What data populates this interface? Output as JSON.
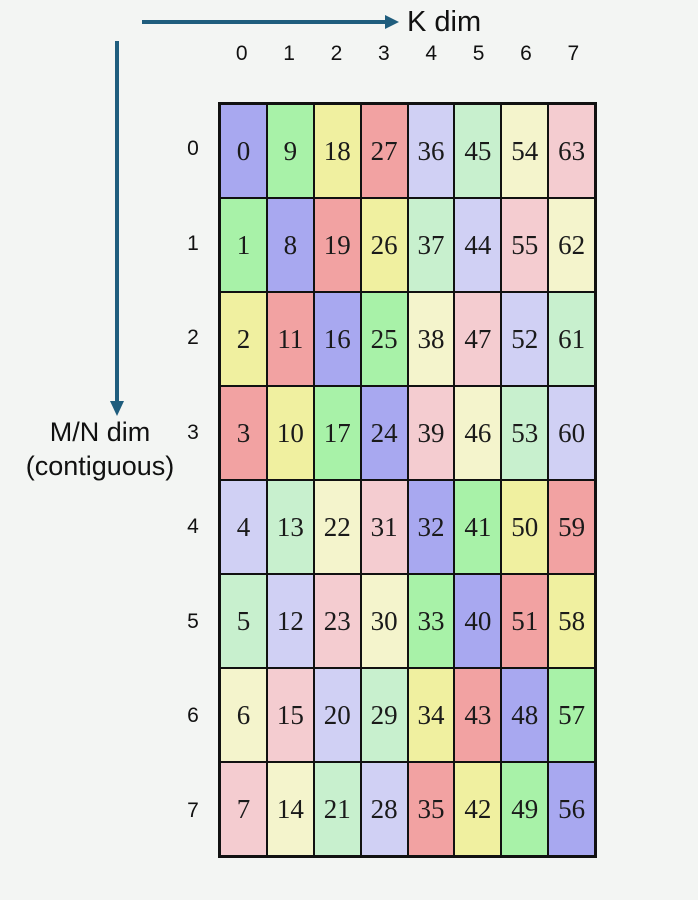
{
  "colors": {
    "background": "#f3f5f3",
    "arrow": "#1f5d7d",
    "text": "#111111"
  },
  "k_axis": {
    "label": "K dim"
  },
  "mn_axis": {
    "label_line1": "M/N dim",
    "label_line2": "(contiguous)"
  },
  "col_headers": [
    "0",
    "1",
    "2",
    "3",
    "4",
    "5",
    "6",
    "7"
  ],
  "row_headers": [
    "0",
    "1",
    "2",
    "3",
    "4",
    "5",
    "6",
    "7"
  ],
  "palette": {
    "purple": "#a8a8f0",
    "green": "#a8f2a8",
    "yellow": "#f0f0a0",
    "red": "#f2a2a2",
    "light_purple": "#d0d0f4",
    "light_green": "#c8f0ce",
    "light_yellow": "#f4f4cc",
    "light_pink": "#f4ccd0"
  },
  "grid": {
    "rows": [
      {
        "cells": [
          {
            "v": "0",
            "c": "purple"
          },
          {
            "v": "9",
            "c": "green"
          },
          {
            "v": "18",
            "c": "yellow"
          },
          {
            "v": "27",
            "c": "red"
          },
          {
            "v": "36",
            "c": "light_purple"
          },
          {
            "v": "45",
            "c": "light_green"
          },
          {
            "v": "54",
            "c": "light_yellow"
          },
          {
            "v": "63",
            "c": "light_pink"
          }
        ]
      },
      {
        "cells": [
          {
            "v": "1",
            "c": "green"
          },
          {
            "v": "8",
            "c": "purple"
          },
          {
            "v": "19",
            "c": "red"
          },
          {
            "v": "26",
            "c": "yellow"
          },
          {
            "v": "37",
            "c": "light_green"
          },
          {
            "v": "44",
            "c": "light_purple"
          },
          {
            "v": "55",
            "c": "light_pink"
          },
          {
            "v": "62",
            "c": "light_yellow"
          }
        ]
      },
      {
        "cells": [
          {
            "v": "2",
            "c": "yellow"
          },
          {
            "v": "11",
            "c": "red"
          },
          {
            "v": "16",
            "c": "purple"
          },
          {
            "v": "25",
            "c": "green"
          },
          {
            "v": "38",
            "c": "light_yellow"
          },
          {
            "v": "47",
            "c": "light_pink"
          },
          {
            "v": "52",
            "c": "light_purple"
          },
          {
            "v": "61",
            "c": "light_green"
          }
        ]
      },
      {
        "cells": [
          {
            "v": "3",
            "c": "red"
          },
          {
            "v": "10",
            "c": "yellow"
          },
          {
            "v": "17",
            "c": "green"
          },
          {
            "v": "24",
            "c": "purple"
          },
          {
            "v": "39",
            "c": "light_pink"
          },
          {
            "v": "46",
            "c": "light_yellow"
          },
          {
            "v": "53",
            "c": "light_green"
          },
          {
            "v": "60",
            "c": "light_purple"
          }
        ]
      },
      {
        "cells": [
          {
            "v": "4",
            "c": "light_purple"
          },
          {
            "v": "13",
            "c": "light_green"
          },
          {
            "v": "22",
            "c": "light_yellow"
          },
          {
            "v": "31",
            "c": "light_pink"
          },
          {
            "v": "32",
            "c": "purple"
          },
          {
            "v": "41",
            "c": "green"
          },
          {
            "v": "50",
            "c": "yellow"
          },
          {
            "v": "59",
            "c": "red"
          }
        ]
      },
      {
        "cells": [
          {
            "v": "5",
            "c": "light_green"
          },
          {
            "v": "12",
            "c": "light_purple"
          },
          {
            "v": "23",
            "c": "light_pink"
          },
          {
            "v": "30",
            "c": "light_yellow"
          },
          {
            "v": "33",
            "c": "green"
          },
          {
            "v": "40",
            "c": "purple"
          },
          {
            "v": "51",
            "c": "red"
          },
          {
            "v": "58",
            "c": "yellow"
          }
        ]
      },
      {
        "cells": [
          {
            "v": "6",
            "c": "light_yellow"
          },
          {
            "v": "15",
            "c": "light_pink"
          },
          {
            "v": "20",
            "c": "light_purple"
          },
          {
            "v": "29",
            "c": "light_green"
          },
          {
            "v": "34",
            "c": "yellow"
          },
          {
            "v": "43",
            "c": "red"
          },
          {
            "v": "48",
            "c": "purple"
          },
          {
            "v": "57",
            "c": "green"
          }
        ]
      },
      {
        "cells": [
          {
            "v": "7",
            "c": "light_pink"
          },
          {
            "v": "14",
            "c": "light_yellow"
          },
          {
            "v": "21",
            "c": "light_green"
          },
          {
            "v": "28",
            "c": "light_purple"
          },
          {
            "v": "35",
            "c": "red"
          },
          {
            "v": "42",
            "c": "yellow"
          },
          {
            "v": "49",
            "c": "green"
          },
          {
            "v": "56",
            "c": "purple"
          }
        ]
      }
    ]
  }
}
